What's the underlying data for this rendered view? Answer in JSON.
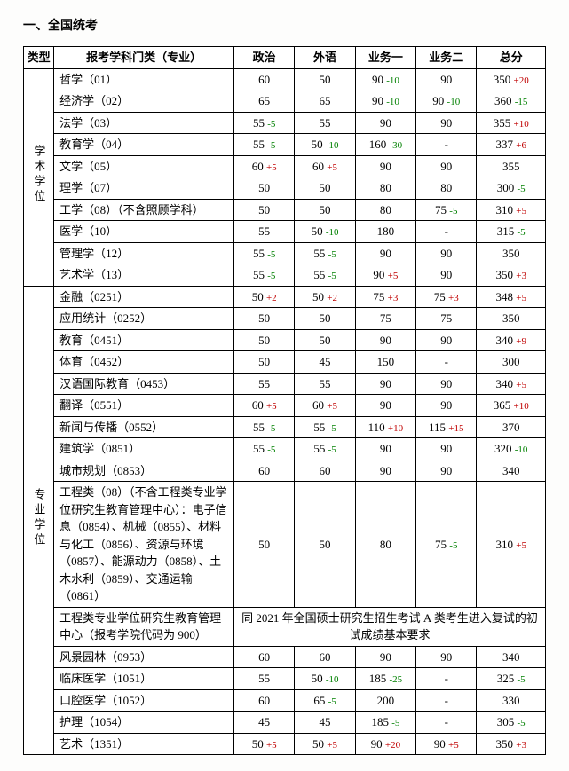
{
  "title": "一、全国统考",
  "headers": {
    "type": "类型",
    "major": "报考学科门类（专业）",
    "politics": "政治",
    "foreign": "外语",
    "biz1": "业务一",
    "biz2": "业务二",
    "total": "总分"
  },
  "cat1": "学术学位",
  "cat2": "专业学位",
  "note": "同 2021 年全国硕士研究生招生考试 A 类考生进入复试的初试成绩基本要求",
  "r": {
    "a0": {
      "m": "哲学（01）",
      "p": "60",
      "pd": "",
      "f": "50",
      "fd": "",
      "b1": "90",
      "b1d": "-10",
      "b2": "90",
      "b2d": "",
      "t": "350",
      "td": "+20"
    },
    "a1": {
      "m": "经济学（02）",
      "p": "65",
      "pd": "",
      "f": "65",
      "fd": "",
      "b1": "90",
      "b1d": "-10",
      "b2": "90",
      "b2d": "-10",
      "t": "360",
      "td": "-15"
    },
    "a2": {
      "m": "法学（03）",
      "p": "55",
      "pd": "-5",
      "f": "55",
      "fd": "",
      "b1": "90",
      "b1d": "",
      "b2": "90",
      "b2d": "",
      "t": "355",
      "td": "+10"
    },
    "a3": {
      "m": "教育学（04）",
      "p": "55",
      "pd": "-5",
      "f": "50",
      "fd": "-10",
      "b1": "160",
      "b1d": "-30",
      "b2": "-",
      "b2d": "",
      "t": "337",
      "td": "+6"
    },
    "a4": {
      "m": "文学（05）",
      "p": "60",
      "pd": "+5",
      "f": "60",
      "fd": "+5",
      "b1": "90",
      "b1d": "",
      "b2": "90",
      "b2d": "",
      "t": "355",
      "td": ""
    },
    "a5": {
      "m": "理学（07）",
      "p": "50",
      "pd": "",
      "f": "50",
      "fd": "",
      "b1": "80",
      "b1d": "",
      "b2": "80",
      "b2d": "",
      "t": "300",
      "td": "-5"
    },
    "a6": {
      "m": "工学（08）（不含照顾学科）",
      "p": "50",
      "pd": "",
      "f": "50",
      "fd": "",
      "b1": "80",
      "b1d": "",
      "b2": "75",
      "b2d": "-5",
      "t": "310",
      "td": "+5"
    },
    "a7": {
      "m": "医学（10）",
      "p": "55",
      "pd": "",
      "f": "50",
      "fd": "-10",
      "b1": "180",
      "b1d": "",
      "b2": "-",
      "b2d": "",
      "t": "315",
      "td": "-5"
    },
    "a8": {
      "m": "管理学（12）",
      "p": "55",
      "pd": "-5",
      "f": "55",
      "fd": "-5",
      "b1": "90",
      "b1d": "",
      "b2": "90",
      "b2d": "",
      "t": "350",
      "td": ""
    },
    "a9": {
      "m": "艺术学（13）",
      "p": "55",
      "pd": "-5",
      "f": "55",
      "fd": "-5",
      "b1": "90",
      "b1d": "+5",
      "b2": "90",
      "b2d": "",
      "t": "350",
      "td": "+3"
    },
    "b0": {
      "m": "金融（0251）",
      "p": "50",
      "pd": "+2",
      "f": "50",
      "fd": "+2",
      "b1": "75",
      "b1d": "+3",
      "b2": "75",
      "b2d": "+3",
      "t": "348",
      "td": "+5"
    },
    "b1": {
      "m": "应用统计（0252）",
      "p": "50",
      "pd": "",
      "f": "50",
      "fd": "",
      "b1": "75",
      "b1d": "",
      "b2": "75",
      "b2d": "",
      "t": "350",
      "td": ""
    },
    "b2": {
      "m": "教育（0451）",
      "p": "50",
      "pd": "",
      "f": "50",
      "fd": "",
      "b1": "90",
      "b1d": "",
      "b2": "90",
      "b2d": "",
      "t": "340",
      "td": "+9"
    },
    "b3": {
      "m": "体育（0452）",
      "p": "50",
      "pd": "",
      "f": "45",
      "fd": "",
      "b1": "150",
      "b1d": "",
      "b2": "-",
      "b2d": "",
      "t": "300",
      "td": ""
    },
    "b4": {
      "m": "汉语国际教育（0453）",
      "p": "55",
      "pd": "",
      "f": "55",
      "fd": "",
      "b1": "90",
      "b1d": "",
      "b2": "90",
      "b2d": "",
      "t": "340",
      "td": "+5"
    },
    "b5": {
      "m": "翻译（0551）",
      "p": "60",
      "pd": "+5",
      "f": "60",
      "fd": "+5",
      "b1": "90",
      "b1d": "",
      "b2": "90",
      "b2d": "",
      "t": "365",
      "td": "+10"
    },
    "b6": {
      "m": "新闻与传播（0552）",
      "p": "55",
      "pd": "-5",
      "f": "55",
      "fd": "-5",
      "b1": "110",
      "b1d": "+10",
      "b2": "115",
      "b2d": "+15",
      "t": "370",
      "td": ""
    },
    "b7": {
      "m": "建筑学（0851）",
      "p": "55",
      "pd": "-5",
      "f": "55",
      "fd": "-5",
      "b1": "90",
      "b1d": "",
      "b2": "90",
      "b2d": "",
      "t": "320",
      "td": "-10"
    },
    "b8": {
      "m": "城市规划（0853）",
      "p": "60",
      "pd": "",
      "f": "60",
      "fd": "",
      "b1": "90",
      "b1d": "",
      "b2": "90",
      "b2d": "",
      "t": "340",
      "td": ""
    },
    "b9": {
      "m": "工程类（08）（不含工程类专业学位研究生教育管理中心）：电子信息（0854）、机械（0855）、材料与化工（0856）、资源与环境（0857）、能源动力（0858）、土木水利（0859）、交通运输（0861）",
      "p": "50",
      "pd": "",
      "f": "50",
      "fd": "",
      "b1": "80",
      "b1d": "",
      "b2": "75",
      "b2d": "-5",
      "t": "310",
      "td": "+5"
    },
    "b10": {
      "m": "工程类专业学位研究生教育管理中心（报考学院代码为 900）"
    },
    "b11": {
      "m": "风景园林（0953）",
      "p": "60",
      "pd": "",
      "f": "60",
      "fd": "",
      "b1": "90",
      "b1d": "",
      "b2": "90",
      "b2d": "",
      "t": "340",
      "td": ""
    },
    "b12": {
      "m": "临床医学（1051）",
      "p": "55",
      "pd": "",
      "f": "50",
      "fd": "-10",
      "b1": "185",
      "b1d": "-25",
      "b2": "-",
      "b2d": "",
      "t": "325",
      "td": "-5"
    },
    "b13": {
      "m": "口腔医学（1052）",
      "p": "60",
      "pd": "",
      "f": "65",
      "fd": "-5",
      "b1": "200",
      "b1d": "",
      "b2": "-",
      "b2d": "",
      "t": "330",
      "td": ""
    },
    "b14": {
      "m": "护理（1054）",
      "p": "45",
      "pd": "",
      "f": "45",
      "fd": "",
      "b1": "185",
      "b1d": "-5",
      "b2": "-",
      "b2d": "",
      "t": "305",
      "td": "-5"
    },
    "b15": {
      "m": "艺术（1351）",
      "p": "50",
      "pd": "+5",
      "f": "50",
      "fd": "+5",
      "b1": "90",
      "b1d": "+20",
      "b2": "90",
      "b2d": "+5",
      "t": "350",
      "td": "+3"
    }
  }
}
